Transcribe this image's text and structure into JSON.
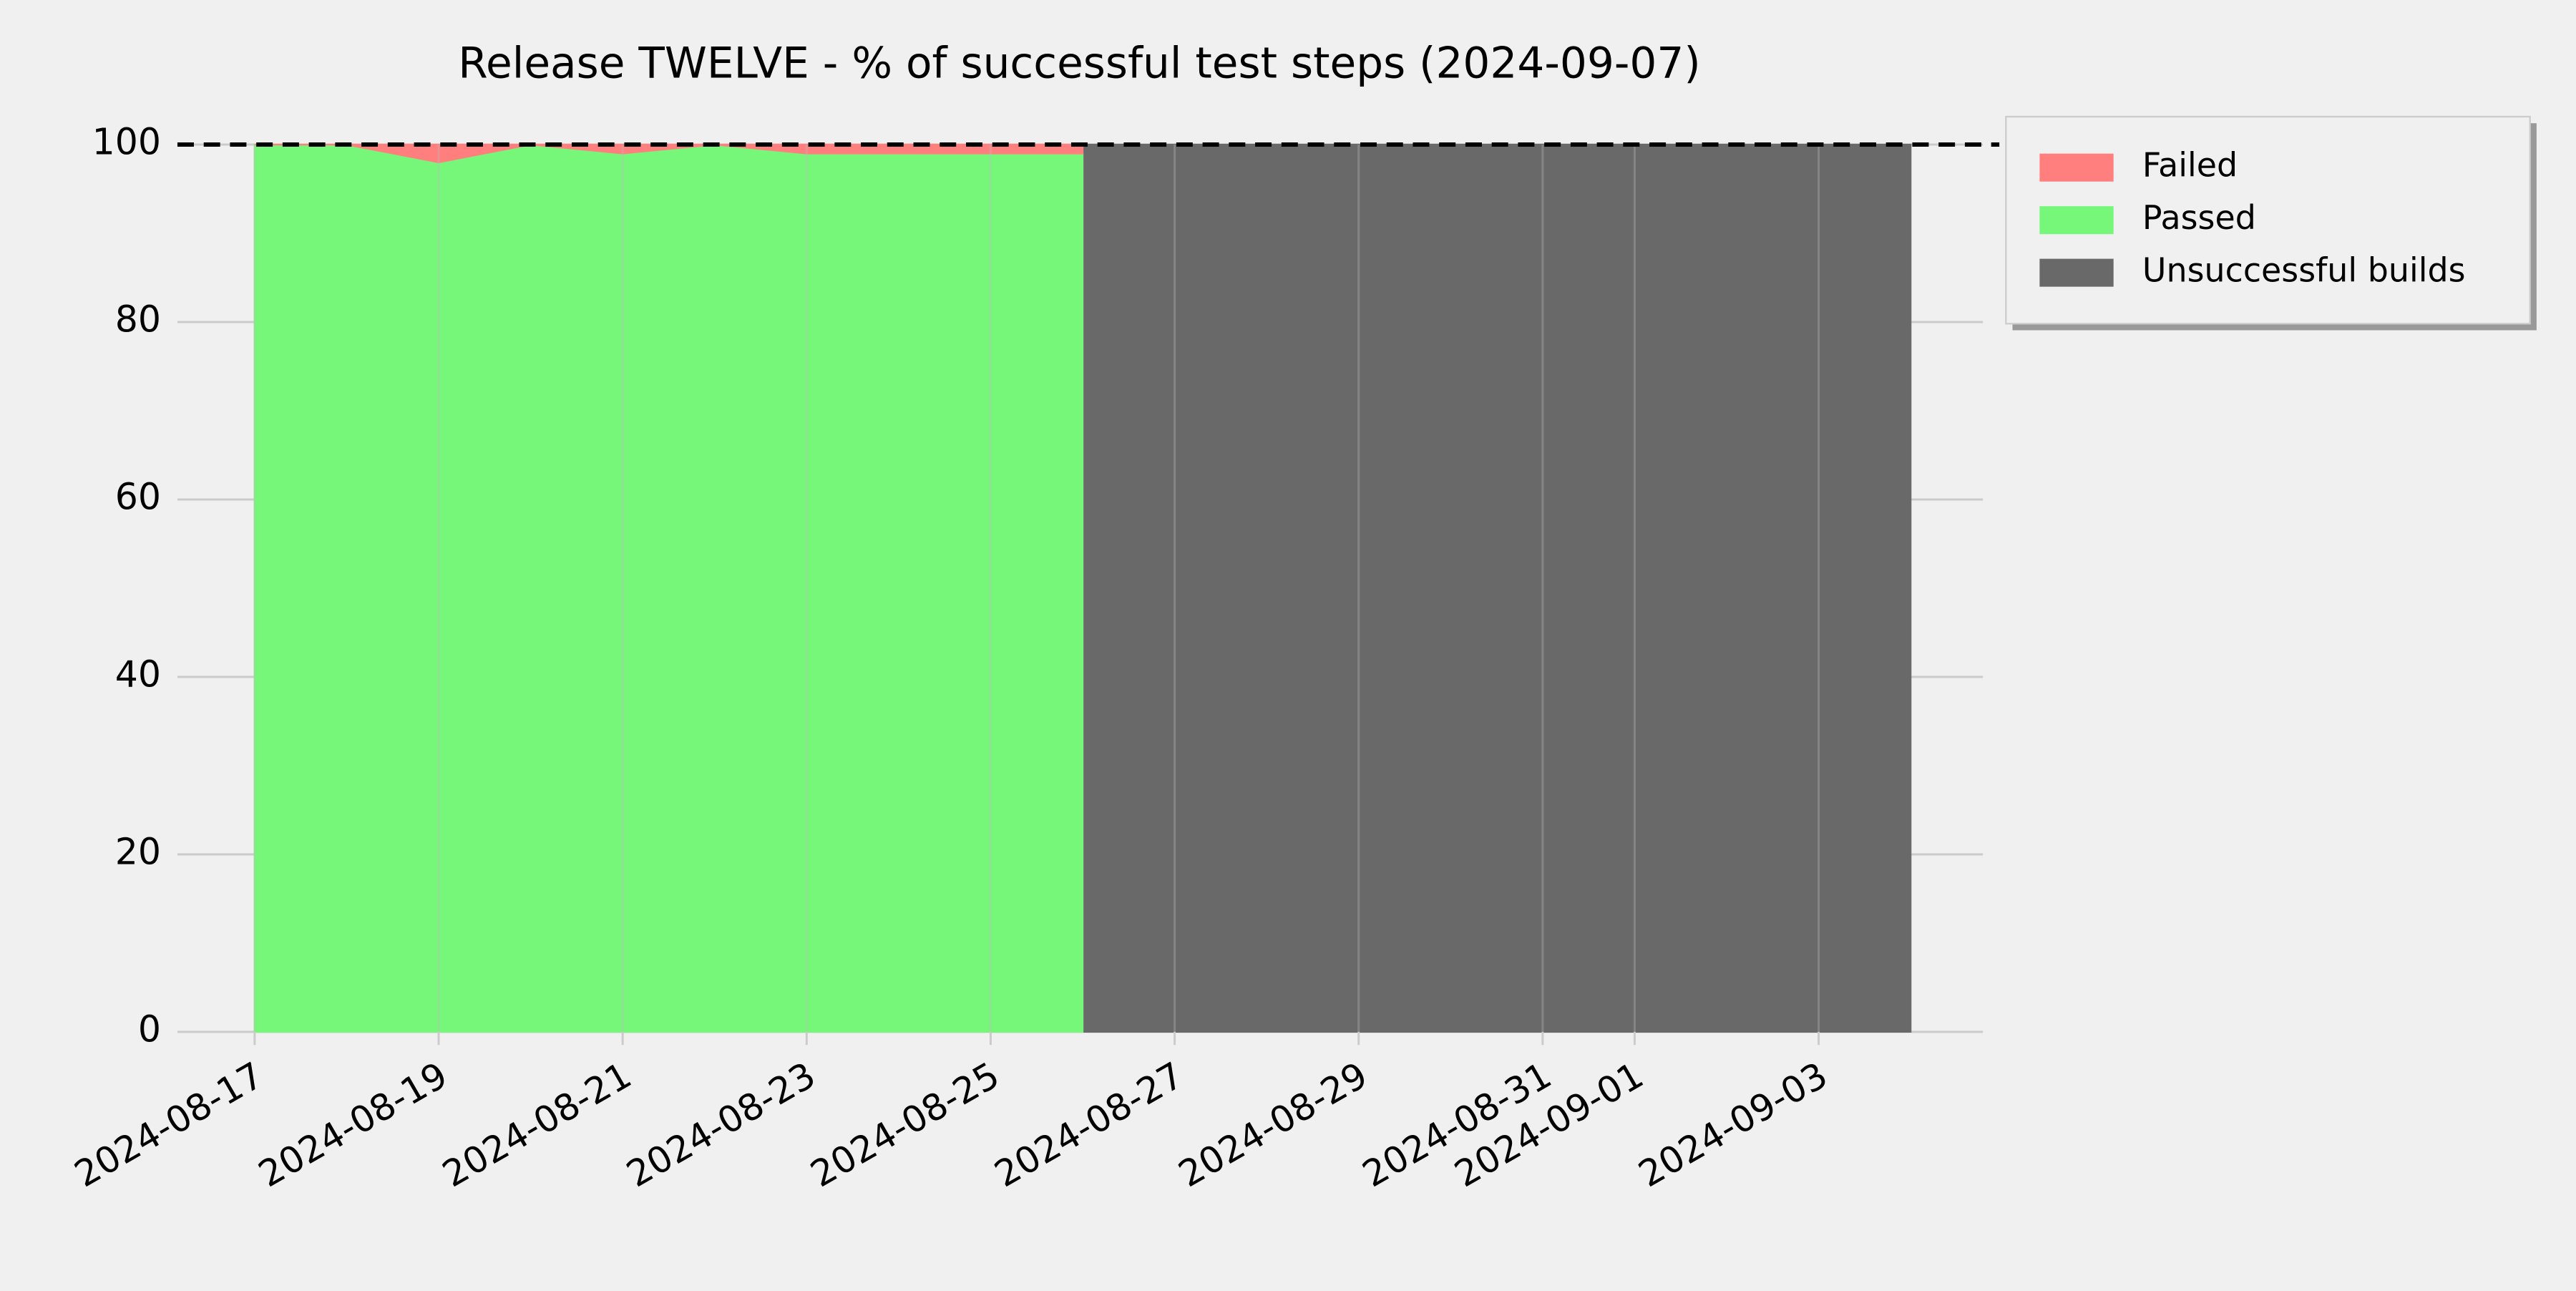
{
  "chart_data": {
    "type": "area",
    "title": "Release TWELVE - % of successful test steps (2024-09-07)",
    "x": [
      "2024-08-17",
      "2024-08-18",
      "2024-08-19",
      "2024-08-20",
      "2024-08-21",
      "2024-08-22",
      "2024-08-23",
      "2024-08-24",
      "2024-08-25",
      "2024-08-26",
      "2024-08-27",
      "2024-08-28",
      "2024-08-29",
      "2024-08-30",
      "2024-08-31",
      "2024-09-01",
      "2024-09-02",
      "2024-09-03",
      "2024-09-04"
    ],
    "series": [
      {
        "name": "Failed",
        "color": "#ff7f7f",
        "values": [
          0,
          0,
          2,
          0,
          1,
          0,
          1,
          1,
          1,
          1,
          null,
          null,
          null,
          null,
          null,
          null,
          null,
          null,
          null
        ]
      },
      {
        "name": "Passed",
        "color": "#77f77a",
        "values": [
          100,
          100,
          98,
          100,
          99,
          100,
          99,
          99,
          99,
          99,
          null,
          null,
          null,
          null,
          null,
          null,
          null,
          null,
          null
        ]
      },
      {
        "name": "Unsuccessful builds",
        "color": "#696969",
        "values": [
          null,
          null,
          null,
          null,
          null,
          null,
          null,
          null,
          null,
          100,
          100,
          100,
          100,
          100,
          100,
          100,
          100,
          100,
          100
        ]
      }
    ],
    "xlim": [
      "2024-08-16",
      "2024-09-05"
    ],
    "xticks": [
      "2024-08-17",
      "2024-08-19",
      "2024-08-21",
      "2024-08-23",
      "2024-08-25",
      "2024-08-27",
      "2024-08-29",
      "2024-08-31",
      "2024-09-01",
      "2024-09-03"
    ],
    "ylim": [
      -5,
      105
    ],
    "yticks": [
      0,
      20,
      40,
      60,
      80,
      100
    ],
    "reference_line": 100,
    "grid": true,
    "legend": "outside-upper-right"
  }
}
